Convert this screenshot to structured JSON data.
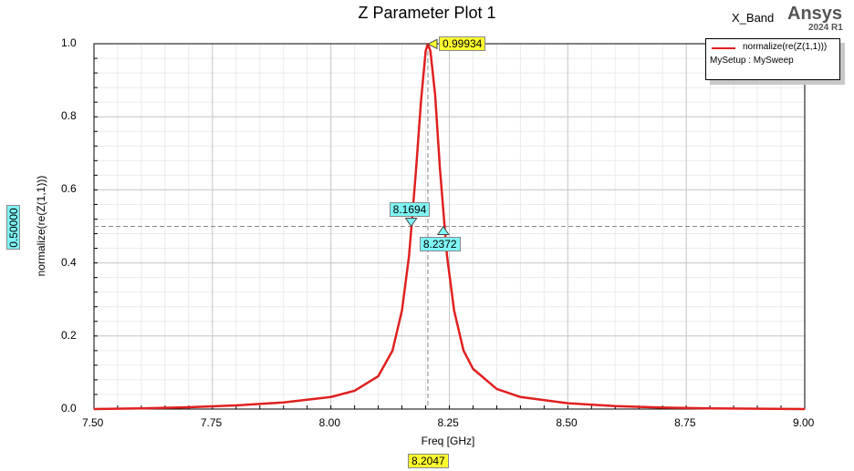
{
  "header": {
    "title": "Z Parameter Plot 1",
    "project": "X_Band",
    "brand": "Ansys",
    "version": "2024 R1"
  },
  "legend": {
    "trace_name": "normalize(re(Z(1,1)))",
    "setup": "MySetup : MySweep"
  },
  "colors": {
    "trace": "#e02020",
    "marker_peak_bg": "#ffff30",
    "marker_bw_bg": "#7ff5f5",
    "grid": "#c8c8c8",
    "grid_minor": "#ebebeb"
  },
  "markers": {
    "peak": {
      "freq": 8.2047,
      "value": 0.99934,
      "label": "0.99934",
      "freq_label": "8.2047"
    },
    "lower": {
      "freq": 8.1694,
      "value": 0.5,
      "label": "8.1694"
    },
    "upper": {
      "freq": 8.2372,
      "value": 0.5,
      "label": "8.2372"
    },
    "level": {
      "value": 0.5,
      "label": "0.50000"
    }
  },
  "chart_data": {
    "type": "line",
    "title": "Z Parameter Plot 1",
    "xlabel": "Freq [GHz]",
    "ylabel": "normalize(re(Z(1,1)))",
    "xlim": [
      7.5,
      9.0
    ],
    "ylim": [
      0.0,
      1.0
    ],
    "x_ticks": [
      "7.50",
      "7.75",
      "8.00",
      "8.25",
      "8.50",
      "8.75",
      "9.00"
    ],
    "y_ticks": [
      "0.0",
      "0.2",
      "0.4",
      "0.6",
      "0.8",
      "1.0"
    ],
    "grid": true,
    "legend_position": "top-right",
    "series": [
      {
        "name": "normalize(re(Z(1,1)))",
        "x": [
          7.5,
          7.6,
          7.7,
          7.8,
          7.9,
          8.0,
          8.05,
          8.1,
          8.13,
          8.15,
          8.165,
          8.18,
          8.19,
          8.2,
          8.2047,
          8.21,
          8.22,
          8.23,
          8.245,
          8.26,
          8.28,
          8.3,
          8.35,
          8.4,
          8.5,
          8.6,
          8.7,
          8.8,
          9.0
        ],
        "y": [
          0.0,
          0.002,
          0.005,
          0.01,
          0.018,
          0.033,
          0.05,
          0.09,
          0.16,
          0.27,
          0.42,
          0.66,
          0.84,
          0.98,
          0.99934,
          0.98,
          0.86,
          0.66,
          0.42,
          0.27,
          0.16,
          0.11,
          0.055,
          0.033,
          0.016,
          0.008,
          0.004,
          0.002,
          0.0
        ]
      }
    ]
  }
}
